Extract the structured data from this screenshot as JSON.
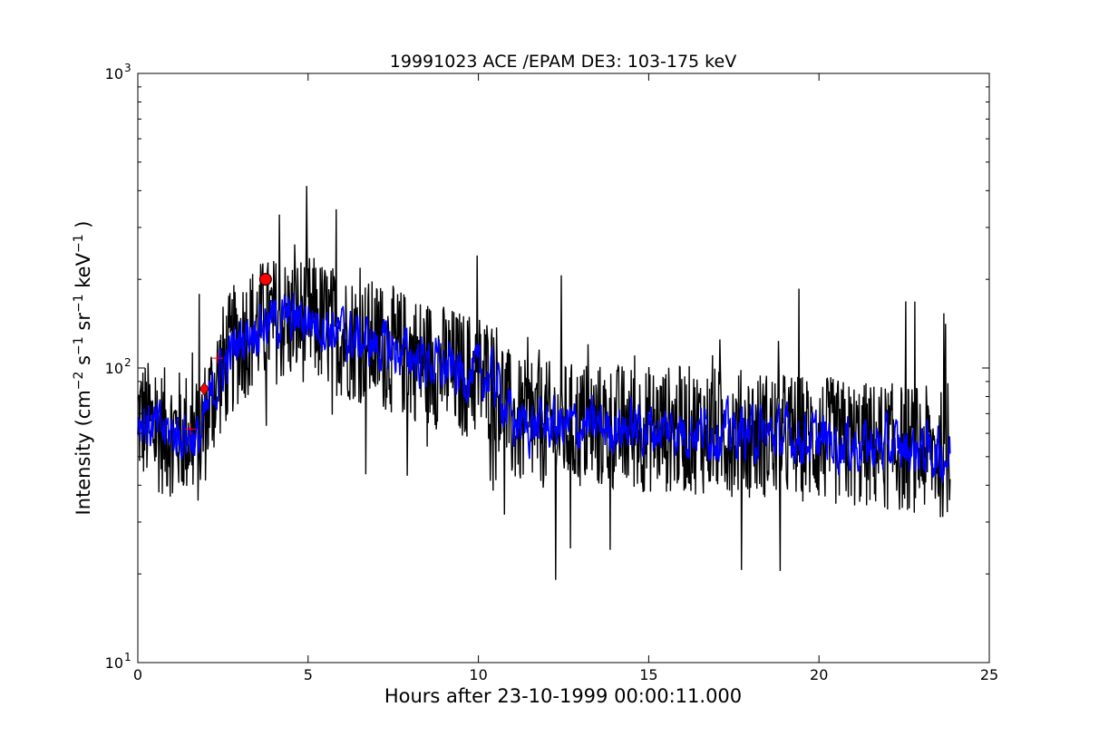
{
  "chart_data": {
    "type": "line",
    "title": "19991023 ACE /EPAM DE3: 103-175 keV",
    "xlabel": "Hours after 23-10-1999 00:00:11.000",
    "ylabel_parts": [
      "Intensity (cm",
      "−2",
      " s",
      "−1",
      " sr",
      "−1",
      " keV",
      "−1",
      " )"
    ],
    "xlim": [
      0,
      25
    ],
    "ylim": [
      10,
      1000
    ],
    "yscale": "log",
    "grid": false,
    "x_ticks": [
      0,
      5,
      10,
      15,
      20,
      25
    ],
    "x_tick_labels": [
      "0",
      "5",
      "10",
      "15",
      "20",
      "25"
    ],
    "y_major_ticks": [
      10,
      100,
      1000
    ],
    "y_tick_labels": [
      {
        "base": "10",
        "exp": "1"
      },
      {
        "base": "10",
        "exp": "2"
      },
      {
        "base": "10",
        "exp": "3"
      }
    ],
    "series": [
      {
        "color": "#000000",
        "style": "noisy raw",
        "envelope": {
          "x": [
            0,
            0.5,
            1,
            1.5,
            1.8,
            2,
            2.3,
            2.5,
            2.8,
            3,
            3.5,
            4,
            4.5,
            5,
            5.5,
            6,
            6.5,
            7,
            7.5,
            8,
            8.5,
            9,
            9.5,
            10,
            10.5,
            10.8,
            11,
            11.5,
            12,
            13,
            14,
            15,
            16,
            17,
            18,
            19,
            20,
            21,
            22,
            23,
            23.85
          ],
          "y": [
            68,
            62,
            60,
            60,
            56,
            68,
            88,
            100,
            115,
            125,
            140,
            145,
            145,
            148,
            140,
            130,
            125,
            120,
            115,
            110,
            105,
            100,
            95,
            95,
            90,
            75,
            65,
            64,
            64,
            63,
            63,
            62,
            62,
            61,
            60,
            59,
            57,
            55,
            54,
            53,
            50
          ]
        },
        "spread": 0.22
      },
      {
        "color": "#0000ff",
        "style": "smoothed",
        "x": [
          0,
          0.5,
          1,
          1.5,
          1.8,
          2,
          2.3,
          2.5,
          2.8,
          3,
          3.5,
          4,
          4.5,
          5,
          5.5,
          6,
          6.5,
          7,
          7.5,
          8,
          8.5,
          9,
          9.5,
          10,
          10.5,
          10.8,
          11,
          11.5,
          12,
          13,
          14,
          15,
          16,
          17,
          18,
          19,
          20,
          21,
          22,
          23,
          23.85
        ],
        "y": [
          68,
          62,
          60,
          60,
          56,
          68,
          88,
          100,
          115,
          125,
          140,
          145,
          145,
          148,
          140,
          130,
          125,
          120,
          115,
          110,
          105,
          100,
          95,
          95,
          90,
          75,
          65,
          64,
          64,
          63,
          63,
          62,
          62,
          61,
          60,
          59,
          57,
          55,
          54,
          53,
          50
        ],
        "spread": 0.07
      }
    ],
    "markers": [
      {
        "x": 3.75,
        "y": 200,
        "shape": "circle",
        "color": "#ff0000"
      },
      {
        "x": 1.95,
        "y": 85,
        "shape": "diamond",
        "color": "#ff0000"
      },
      {
        "x": 1.55,
        "y": 62,
        "shape": "plus",
        "color": "#ff0000"
      },
      {
        "x": 2.35,
        "y": 108,
        "shape": "plus",
        "color": "#ff0000"
      }
    ]
  }
}
